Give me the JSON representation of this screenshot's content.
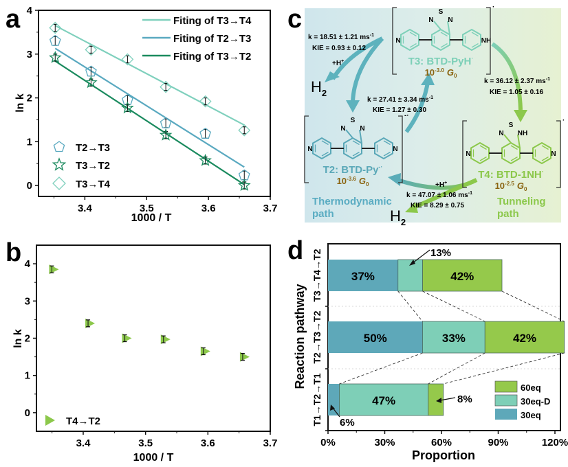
{
  "panel_labels": {
    "a": "a",
    "b": "b",
    "c": "c",
    "d": "d"
  },
  "colors": {
    "t3t4": "#7fd0bd",
    "t2t3": "#5aa9c0",
    "t3t2": "#1a8a5e",
    "green": "#8cc84b",
    "teal_dark": "#5aa8b8",
    "teal_light": "#7dd0b8",
    "brown": "#8a6410",
    "bar_30eq": "#5ea8b9",
    "bar_30eqD": "#7ecfb7",
    "bar_60eq": "#95c94b"
  },
  "chart_data": [
    {
      "id": "a",
      "type": "scatter",
      "title": "",
      "xlabel": "1000 / T",
      "ylabel": "ln k",
      "xlim": [
        3.325,
        3.7
      ],
      "ylim": [
        -0.25,
        4
      ],
      "xticks": [
        3.4,
        3.5,
        3.6,
        3.7
      ],
      "xtick_labels": [
        "3.4",
        "3.5",
        "3.6",
        "3.7"
      ],
      "yticks": [
        0,
        1,
        2,
        3,
        4
      ],
      "ytick_labels": [
        "0",
        "1",
        "2",
        "3",
        "4"
      ],
      "grid": false,
      "x": [
        3.352,
        3.41,
        3.469,
        3.531,
        3.595,
        3.658
      ],
      "series": [
        {
          "name": "T2→T3",
          "marker": "pentagon",
          "values": [
            3.3,
            2.6,
            1.95,
            1.42,
            1.18,
            0.23
          ],
          "err": [
            0.1,
            0.1,
            0.1,
            0.1,
            0.1,
            0.1
          ]
        },
        {
          "name": "T3→T2",
          "marker": "star",
          "values": [
            2.92,
            2.35,
            1.77,
            1.15,
            0.57,
            0.0
          ],
          "err": [
            0.08,
            0.08,
            0.08,
            0.08,
            0.08,
            0.08
          ]
        },
        {
          "name": "T3→T4",
          "marker": "diamond",
          "values": [
            3.6,
            3.1,
            2.88,
            2.25,
            1.92,
            1.26
          ],
          "err": [
            0.08,
            0.08,
            0.08,
            0.08,
            0.08,
            0.08
          ]
        }
      ],
      "fits": [
        {
          "name": "Fiting of T3→T4",
          "x": [
            3.352,
            3.658
          ],
          "y": [
            3.65,
            1.38
          ]
        },
        {
          "name": "Fiting of T2→T3",
          "x": [
            3.352,
            3.658
          ],
          "y": [
            3.13,
            0.42
          ]
        },
        {
          "name": "Fiting of T3→T2",
          "x": [
            3.352,
            3.658
          ],
          "y": [
            2.84,
            0.02
          ]
        }
      ],
      "legend_fit_placement": "top-right",
      "legend_marker_placement": "bottom-left"
    },
    {
      "id": "b",
      "type": "scatter",
      "xlabel": "1000 / T",
      "ylabel": "ln k",
      "xlim": [
        3.325,
        3.7
      ],
      "ylim": [
        -0.5,
        4.5
      ],
      "xticks": [
        3.4,
        3.5,
        3.6,
        3.7
      ],
      "xtick_labels": [
        "3.4",
        "3.5",
        "3.6",
        "3.7"
      ],
      "yticks": [
        0,
        1,
        2,
        3,
        4
      ],
      "ytick_labels": [
        "0",
        "1",
        "2",
        "3",
        "4"
      ],
      "grid": false,
      "x": [
        3.352,
        3.41,
        3.469,
        3.531,
        3.595,
        3.658
      ],
      "series": [
        {
          "name": "T4→T2",
          "marker": "triangle-right",
          "values": [
            3.85,
            2.4,
            2.0,
            1.97,
            1.65,
            1.5
          ]
        }
      ],
      "legend_placement": "bottom-left"
    },
    {
      "id": "d",
      "type": "bar",
      "orientation": "horizontal-stacked",
      "xlabel": "Proportion",
      "ylabel": "Reaction pathway",
      "xlim": [
        0,
        125
      ],
      "xticks": [
        0,
        30,
        60,
        90,
        120
      ],
      "xtick_labels": [
        "0%",
        "30%",
        "60%",
        "90%",
        "120%"
      ],
      "categories": [
        "T3→T4→T2",
        "T2→T3→T2",
        "T1→T2→T1"
      ],
      "series": [
        {
          "name": "30eq",
          "values": [
            37,
            50,
            6
          ],
          "labels": [
            "37%",
            "50%",
            "6%"
          ]
        },
        {
          "name": "30eq-D",
          "values": [
            13,
            33,
            47
          ],
          "labels": [
            "13%",
            "33%",
            "47%"
          ]
        },
        {
          "name": "60eq",
          "values": [
            42,
            42,
            8
          ],
          "labels": [
            "42%",
            "42%",
            "8%"
          ]
        }
      ],
      "legend": [
        "60eq",
        "30eq-D",
        "30eq"
      ],
      "legend_placement": "bottom-right"
    }
  ],
  "diagram_c": {
    "t3": {
      "name": "T3: BTD-PyH",
      "sup": "·",
      "conductance_base": "10",
      "conductance_exp": "-3.0",
      "g": "G",
      "g_sub": "0",
      "atoms": {
        "s": "S",
        "n1": "N",
        "n2": "N",
        "left_n": "N",
        "right_n": "NH"
      }
    },
    "t2": {
      "name": "T2: BTD-Py",
      "sup": "-·",
      "conductance_base": "10",
      "conductance_exp": "-3.6",
      "g": "G",
      "g_sub": "0",
      "charge": "-·",
      "atoms": {
        "s": "S",
        "n1": "N",
        "n2": "N",
        "left_n": "N",
        "right_n": "N"
      }
    },
    "t4": {
      "name": "T4: BTD-1NH",
      "sup": "·",
      "conductance_base": "10",
      "conductance_exp": "-2.5",
      "g": "G",
      "g_sub": "0",
      "atoms": {
        "s": "S",
        "n1": "N",
        "n2": "NH",
        "left_n": "N",
        "right_n": "N"
      }
    },
    "rates": {
      "t3_to_t2": {
        "k": "k = 18.51 ± 1.21 ms",
        "k_sup": "-1",
        "kie": "KIE = 0.93 ± 0.12"
      },
      "t2_to_t3": {
        "k": "k = 27.41 ± 3.34 ms",
        "k_sup": "-1",
        "kie": "KIE = 1.27 ± 0.30"
      },
      "t3_to_t4": {
        "k": "k = 36.12 ± 2.37 ms",
        "k_sup": "-1",
        "kie": "KIE = 1.05 ± 0.16"
      },
      "t4_to_t2": {
        "k": "k = 47.07 ± 1.06 ms",
        "k_sup": "-1",
        "kie": "KIE = 8.29 ± 0.75"
      }
    },
    "h_plus": "+H",
    "h_plus_sup": "+",
    "h2": "H",
    "h2_sub": "2",
    "thermo_label": [
      "Thermodynamic",
      "path"
    ],
    "tunnel_label": [
      "Tunneling",
      "path"
    ],
    "dot": "·"
  }
}
